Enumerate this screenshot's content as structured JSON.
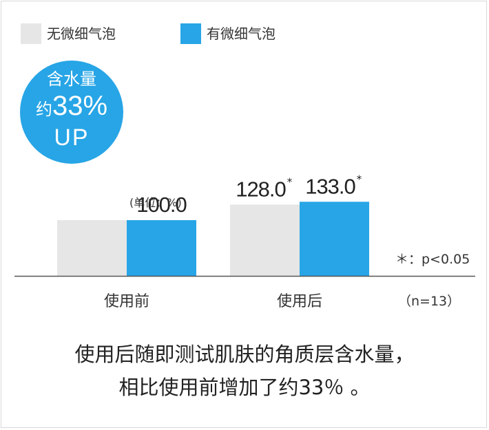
{
  "legend": [
    {
      "label": "无微细气泡",
      "color": "#e6e6e6"
    },
    {
      "label": "有微细气泡",
      "color": "#27a5e6"
    }
  ],
  "badge": {
    "line1": "含水量",
    "line2_prefix": "约",
    "line2_value": "33%",
    "line3": "UP",
    "color": "#27a5e6"
  },
  "unit_note": "(单位：%)",
  "significance_note": "＊：p<0.05",
  "sample_note": "（n=13）",
  "caption": {
    "line1": "使用后随即测试肌肤的角质层含水量，",
    "line2": "相比使用前增加了约33％ 。"
  },
  "chart_data": {
    "type": "bar",
    "categories": [
      "使用前",
      "使用后"
    ],
    "series": [
      {
        "name": "无微细气泡",
        "values": [
          100.0,
          128.0
        ],
        "labels": [
          "",
          "128.0"
        ],
        "marker": [
          "",
          "*"
        ],
        "color": "#e6e6e6"
      },
      {
        "name": "有微细气泡",
        "values": [
          100.0,
          133.0
        ],
        "labels": [
          "100.0",
          "133.0"
        ],
        "marker": [
          "",
          "*"
        ],
        "color": "#27a5e6"
      }
    ],
    "ylim": [
      0,
      140
    ],
    "grid": false,
    "legend_position": "top-left"
  }
}
